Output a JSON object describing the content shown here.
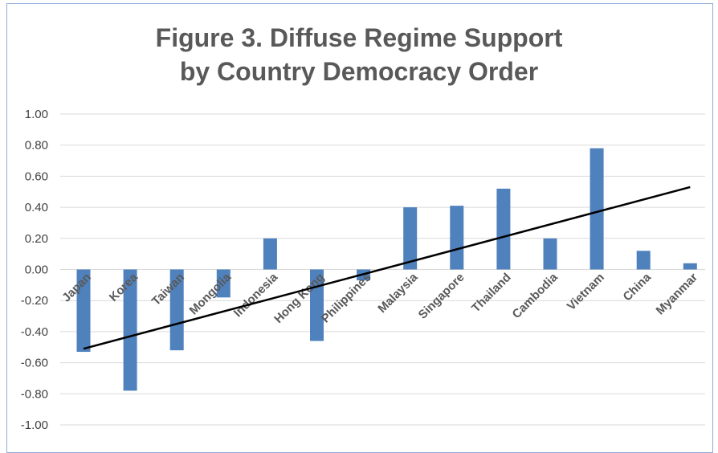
{
  "chart_data": {
    "type": "bar",
    "title_line1": "Figure 3. Diffuse Regime Support",
    "title_line2": "by Country Democracy Order",
    "categories": [
      "Japan",
      "Korea",
      "Taiwan",
      "Mongolia",
      "Indonesia",
      "Hong Kong",
      "Philippines",
      "Malaysia",
      "Singapore",
      "Thailand",
      "Cambodia",
      "Vietnam",
      "China",
      "Myanmar"
    ],
    "values": [
      -0.53,
      -0.78,
      -0.52,
      -0.18,
      0.2,
      -0.46,
      -0.07,
      0.4,
      0.41,
      0.52,
      0.2,
      0.78,
      0.12,
      0.04
    ],
    "yticks": [
      "1.00",
      "0.80",
      "0.60",
      "0.40",
      "0.20",
      "0.00",
      "-0.20",
      "-0.40",
      "-0.60",
      "-0.80",
      "-1.00"
    ],
    "ylim": [
      -1.0,
      1.0
    ],
    "trendline": {
      "start": -0.51,
      "end": 0.53
    },
    "grid": true,
    "colors": {
      "bar": "#4f81bd",
      "trend": "#000000",
      "grid": "#d9d9d9",
      "frame": "#8eaadb"
    }
  }
}
